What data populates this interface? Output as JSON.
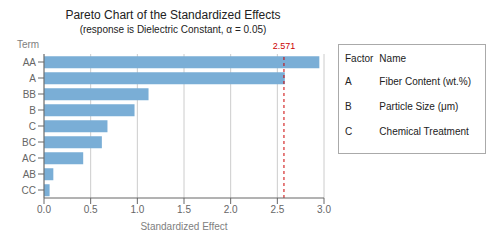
{
  "chart_data": {
    "type": "bar",
    "orientation": "horizontal",
    "title": "Pareto Chart of the Standardized Effects",
    "subtitle": "(response is Dielectric Constant, α = 0.05)",
    "xlabel": "Standardized Effect",
    "ylabel": "Term",
    "categories": [
      "AA",
      "A",
      "BB",
      "B",
      "C",
      "BC",
      "AC",
      "AB",
      "CC"
    ],
    "values": [
      2.95,
      2.58,
      1.12,
      0.97,
      0.68,
      0.62,
      0.42,
      0.1,
      0.06
    ],
    "color": "#7aaed6",
    "xlim": [
      0,
      3.0
    ],
    "xticks": [
      {
        "value": 0.0,
        "label": "0.0"
      },
      {
        "value": 0.5,
        "label": "0.5"
      },
      {
        "value": 1.0,
        "label": "1.0"
      },
      {
        "value": 1.5,
        "label": "1.5"
      },
      {
        "value": 2.0,
        "label": "2.0"
      },
      {
        "value": 2.5,
        "label": "2.5"
      },
      {
        "value": 3.0,
        "label": "3.0"
      }
    ],
    "grid": true,
    "reference_line": {
      "value": 2.571,
      "label": "2.571",
      "color": "#cc0000"
    },
    "factor_table": {
      "header": [
        "Factor",
        "Name"
      ],
      "rows": [
        [
          "A",
          "Fiber Content (wt.%)"
        ],
        [
          "B",
          "Particle Size (μm)"
        ],
        [
          "C",
          "Chemical Treatment"
        ]
      ]
    }
  }
}
